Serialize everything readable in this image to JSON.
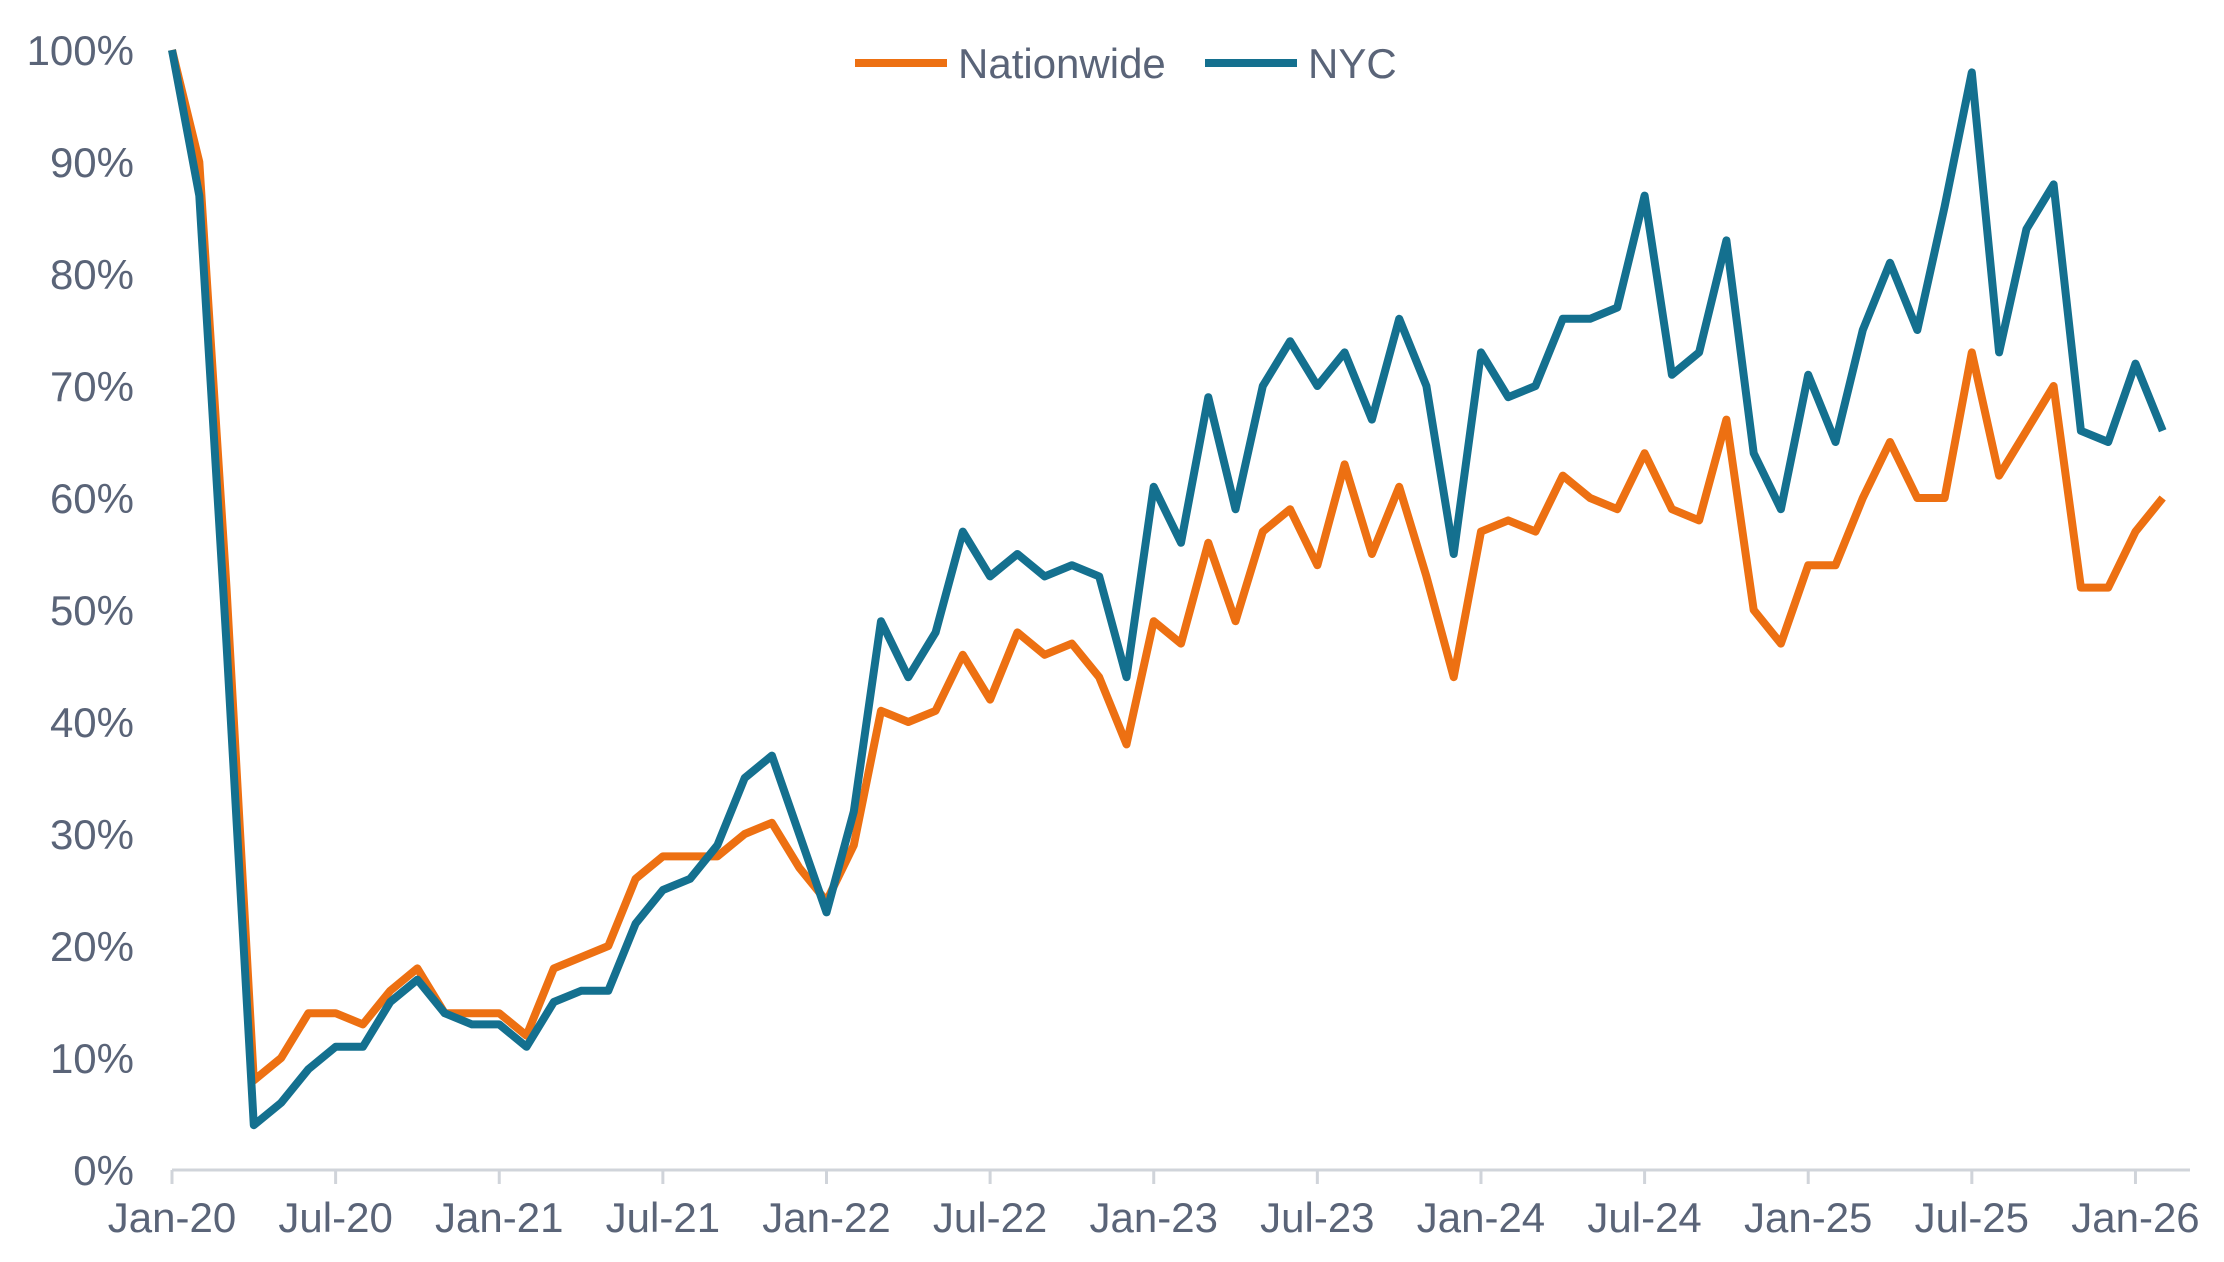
{
  "chart_data": {
    "type": "line",
    "title": "",
    "xlabel": "",
    "ylabel": "",
    "ylim": [
      0,
      100
    ],
    "y_ticks": [
      "0%",
      "10%",
      "20%",
      "30%",
      "40%",
      "50%",
      "60%",
      "70%",
      "80%",
      "90%",
      "100%"
    ],
    "x_range": [
      "2020-01",
      "2026-03"
    ],
    "x_ticks": [
      "Jan-20",
      "Jul-20",
      "Jan-21",
      "Jul-21",
      "Jan-22",
      "Jul-22",
      "Jan-23",
      "Jul-23",
      "Jan-24",
      "Jul-24",
      "Jan-25",
      "Jul-25",
      "Jan-26"
    ],
    "grid": false,
    "legend_position": "top-center",
    "series": [
      {
        "name": "Nationwide",
        "color": "#ed7012",
        "x": [
          "2020-01",
          "2020-02",
          "2020-03",
          "2020-04",
          "2020-05",
          "2020-06",
          "2020-07",
          "2020-08",
          "2020-09",
          "2020-10",
          "2020-11",
          "2020-12",
          "2021-01",
          "2021-02",
          "2021-03",
          "2021-04",
          "2021-05",
          "2021-06",
          "2021-07",
          "2021-08",
          "2021-09",
          "2021-10",
          "2021-11",
          "2021-12",
          "2022-01",
          "2022-02",
          "2022-03",
          "2022-04",
          "2022-05",
          "2022-06",
          "2022-07",
          "2022-08",
          "2022-09",
          "2022-10",
          "2022-11",
          "2022-12",
          "2023-01",
          "2023-02",
          "2023-03",
          "2023-04",
          "2023-05",
          "2023-06",
          "2023-07",
          "2023-08",
          "2023-09",
          "2023-10",
          "2023-11",
          "2023-12",
          "2024-01",
          "2024-02",
          "2024-03",
          "2024-04",
          "2024-05",
          "2024-06",
          "2024-07",
          "2024-08",
          "2024-09",
          "2024-10",
          "2024-11",
          "2024-12",
          "2025-01",
          "2025-02",
          "2025-03",
          "2025-04",
          "2025-05",
          "2025-06",
          "2025-07",
          "2025-08",
          "2025-09",
          "2025-10",
          "2025-11",
          "2025-12",
          "2026-01",
          "2026-02"
        ],
        "values": [
          100,
          90,
          52,
          8,
          10,
          14,
          14,
          13,
          16,
          18,
          14,
          14,
          14,
          12,
          18,
          19,
          20,
          26,
          28,
          28,
          28,
          30,
          31,
          27,
          24,
          29,
          41,
          40,
          41,
          46,
          42,
          48,
          46,
          47,
          44,
          38,
          49,
          47,
          56,
          49,
          57,
          59,
          54,
          63,
          55,
          61,
          53,
          44,
          57,
          58,
          57,
          62,
          60,
          59,
          64,
          59,
          58,
          67,
          50,
          47,
          54,
          54,
          60,
          65,
          60,
          60,
          73,
          62,
          66,
          70,
          52,
          52,
          57,
          60
        ]
      },
      {
        "name": "NYC",
        "color": "#14708f",
        "x": [
          "2020-01",
          "2020-02",
          "2020-03",
          "2020-04",
          "2020-05",
          "2020-06",
          "2020-07",
          "2020-08",
          "2020-09",
          "2020-10",
          "2020-11",
          "2020-12",
          "2021-01",
          "2021-02",
          "2021-03",
          "2021-04",
          "2021-05",
          "2021-06",
          "2021-07",
          "2021-08",
          "2021-09",
          "2021-10",
          "2021-11",
          "2021-12",
          "2022-01",
          "2022-02",
          "2022-03",
          "2022-04",
          "2022-05",
          "2022-06",
          "2022-07",
          "2022-08",
          "2022-09",
          "2022-10",
          "2022-11",
          "2022-12",
          "2023-01",
          "2023-02",
          "2023-03",
          "2023-04",
          "2023-05",
          "2023-06",
          "2023-07",
          "2023-08",
          "2023-09",
          "2023-10",
          "2023-11",
          "2023-12",
          "2024-01",
          "2024-02",
          "2024-03",
          "2024-04",
          "2024-05",
          "2024-06",
          "2024-07",
          "2024-08",
          "2024-09",
          "2024-10",
          "2024-11",
          "2024-12",
          "2025-01",
          "2025-02",
          "2025-03",
          "2025-04",
          "2025-05",
          "2025-06",
          "2025-07",
          "2025-08",
          "2025-09",
          "2025-10",
          "2025-11",
          "2025-12",
          "2026-01",
          "2026-02"
        ],
        "values": [
          100,
          87,
          47,
          4,
          6,
          9,
          11,
          11,
          15,
          17,
          14,
          13,
          13,
          11,
          15,
          16,
          16,
          22,
          25,
          26,
          29,
          35,
          37,
          30,
          23,
          32,
          49,
          44,
          48,
          57,
          53,
          55,
          53,
          54,
          53,
          44,
          61,
          56,
          69,
          59,
          70,
          74,
          70,
          73,
          67,
          76,
          70,
          55,
          73,
          69,
          70,
          76,
          76,
          77,
          87,
          71,
          73,
          83,
          64,
          59,
          71,
          65,
          75,
          81,
          75,
          86,
          98,
          73,
          84,
          88,
          66,
          65,
          72,
          66
        ]
      }
    ]
  }
}
